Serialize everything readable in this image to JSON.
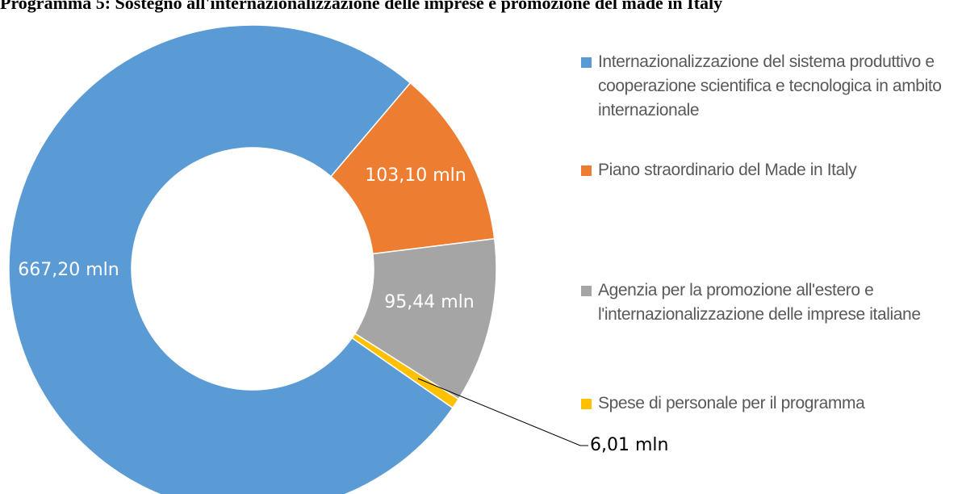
{
  "chart_data": {
    "type": "donut",
    "title": "Programma 5: Sostegno all'internazionalizzazione delle imprese e promozione del made in Italy",
    "categories": [
      "Internazionalizzazione del sistema produttivo e cooperazione scientifica e tecnologica in ambito internazionale",
      "Piano straordinario del Made in Italy",
      "Agenzia per la promozione all'estero e l'internazionalizzazione delle imprese italiane",
      "Spese di personale per il programma"
    ],
    "values": [
      667.2,
      103.1,
      95.44,
      6.01
    ],
    "value_labels": [
      "667,20 mln",
      "103,10 mln",
      "95,44 mln",
      "6,01 mln"
    ],
    "colors": [
      "#5b9bd5",
      "#ed7d31",
      "#a5a5a5",
      "#ffc000"
    ],
    "legend": "right"
  }
}
